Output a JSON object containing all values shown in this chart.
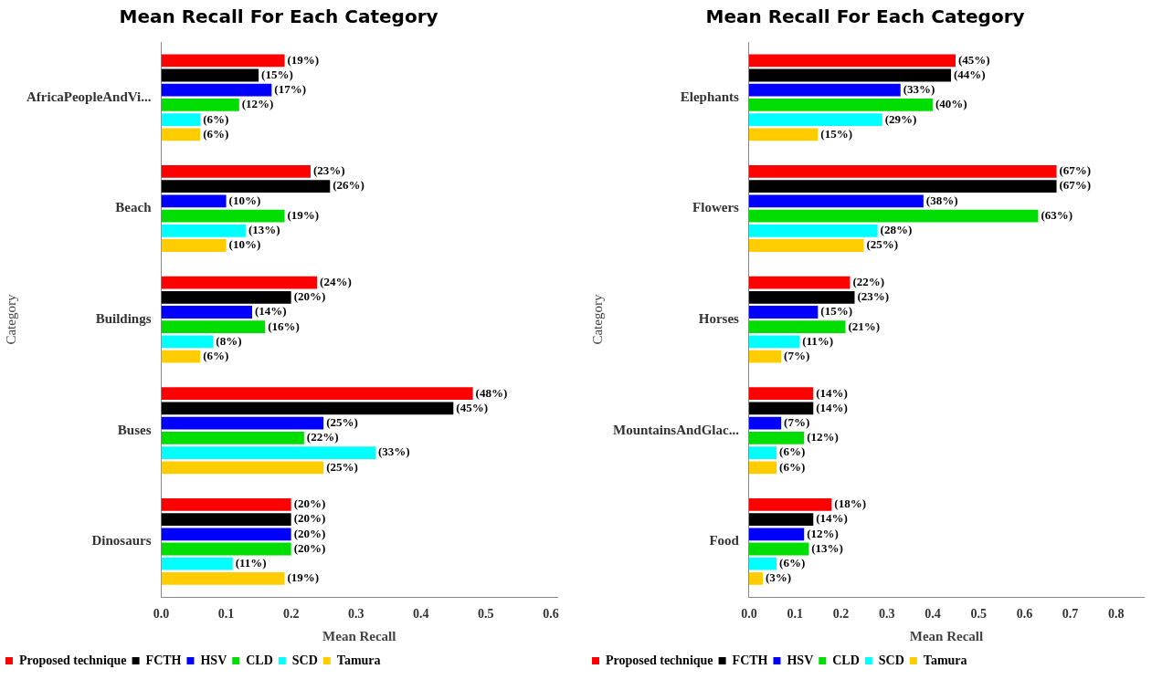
{
  "chart_data": [
    {
      "type": "bar",
      "orientation": "horizontal",
      "title": "Mean Recall For Each Category",
      "xlabel": "Mean Recall",
      "ylabel": "Category",
      "categories": [
        "AfricaPeopleAndVi...",
        "Beach",
        "Buildings",
        "Buses",
        "Dinosaurs"
      ],
      "xlim": [
        0,
        0.61
      ],
      "xticks": [
        {
          "value": 0,
          "label": "0.0"
        },
        0.1,
        0.2,
        0.3,
        0.4,
        0.5,
        0.6
      ],
      "grid": false,
      "legend": "bottom",
      "series": [
        {
          "name": "Proposed technique",
          "color": "#ff0000",
          "values": [
            0.19,
            0.23,
            0.24,
            0.48,
            0.2
          ],
          "value_labels": [
            "(19%)",
            "(23%)",
            "(24%)",
            "(48%)",
            "(20%)"
          ]
        },
        {
          "name": "FCTH",
          "color": "#000000",
          "values": [
            0.15,
            0.26,
            0.2,
            0.45,
            0.2
          ],
          "value_labels": [
            "(15%)",
            "(26%)",
            "(20%)",
            "(45%)",
            "(20%)"
          ]
        },
        {
          "name": "HSV",
          "color": "#0000ff",
          "values": [
            0.17,
            0.1,
            0.14,
            0.25,
            0.2
          ],
          "value_labels": [
            "(17%)",
            "(10%)",
            "(14%)",
            "(25%)",
            "(20%)"
          ]
        },
        {
          "name": "CLD",
          "color": "#00dd00",
          "values": [
            0.12,
            0.19,
            0.16,
            0.22,
            0.2
          ],
          "value_labels": [
            "(12%)",
            "(19%)",
            "(16%)",
            "(22%)",
            "(20%)"
          ]
        },
        {
          "name": "SCD",
          "color": "#00ffff",
          "values": [
            0.06,
            0.13,
            0.08,
            0.33,
            0.11
          ],
          "value_labels": [
            "(6%)",
            "(13%)",
            "(8%)",
            "(33%)",
            "(11%)"
          ]
        },
        {
          "name": "Tamura",
          "color": "#ffcc00",
          "values": [
            0.06,
            0.1,
            0.06,
            0.25,
            0.19
          ],
          "value_labels": [
            "(6%)",
            "(10%)",
            "(6%)",
            "(25%)",
            "(19%)"
          ]
        }
      ]
    },
    {
      "type": "bar",
      "orientation": "horizontal",
      "title": "Mean Recall For Each Category",
      "xlabel": "Mean Recall",
      "ylabel": "Category",
      "categories": [
        "Elephants",
        "Flowers",
        "Horses",
        "MountainsAndGlac...",
        "Food"
      ],
      "xlim": [
        0,
        0.86
      ],
      "xticks": [
        {
          "value": 0,
          "label": "0.0"
        },
        0.1,
        0.2,
        0.3,
        0.4,
        0.5,
        0.6,
        0.7,
        0.8
      ],
      "grid": false,
      "legend": "bottom",
      "series": [
        {
          "name": "Proposed technique",
          "color": "#ff0000",
          "values": [
            0.45,
            0.67,
            0.22,
            0.14,
            0.18
          ],
          "value_labels": [
            "(45%)",
            "(67%)",
            "(22%)",
            "(14%)",
            "(18%)"
          ]
        },
        {
          "name": "FCTH",
          "color": "#000000",
          "values": [
            0.44,
            0.67,
            0.23,
            0.14,
            0.14
          ],
          "value_labels": [
            "(44%)",
            "(67%)",
            "(23%)",
            "(14%)",
            "(14%)"
          ]
        },
        {
          "name": "HSV",
          "color": "#0000ff",
          "values": [
            0.33,
            0.38,
            0.15,
            0.07,
            0.12
          ],
          "value_labels": [
            "(33%)",
            "(38%)",
            "(15%)",
            "(7%)",
            "(12%)"
          ]
        },
        {
          "name": "CLD",
          "color": "#00dd00",
          "values": [
            0.4,
            0.63,
            0.21,
            0.12,
            0.13
          ],
          "value_labels": [
            "(40%)",
            "(63%)",
            "(21%)",
            "(12%)",
            "(13%)"
          ]
        },
        {
          "name": "SCD",
          "color": "#00ffff",
          "values": [
            0.29,
            0.28,
            0.11,
            0.06,
            0.06
          ],
          "value_labels": [
            "(29%)",
            "(28%)",
            "(11%)",
            "(6%)",
            "(6%)"
          ]
        },
        {
          "name": "Tamura",
          "color": "#ffcc00",
          "values": [
            0.15,
            0.25,
            0.07,
            0.06,
            0.03
          ],
          "value_labels": [
            "(15%)",
            "(25%)",
            "(7%)",
            "(6%)",
            "(3%)"
          ]
        }
      ]
    }
  ]
}
